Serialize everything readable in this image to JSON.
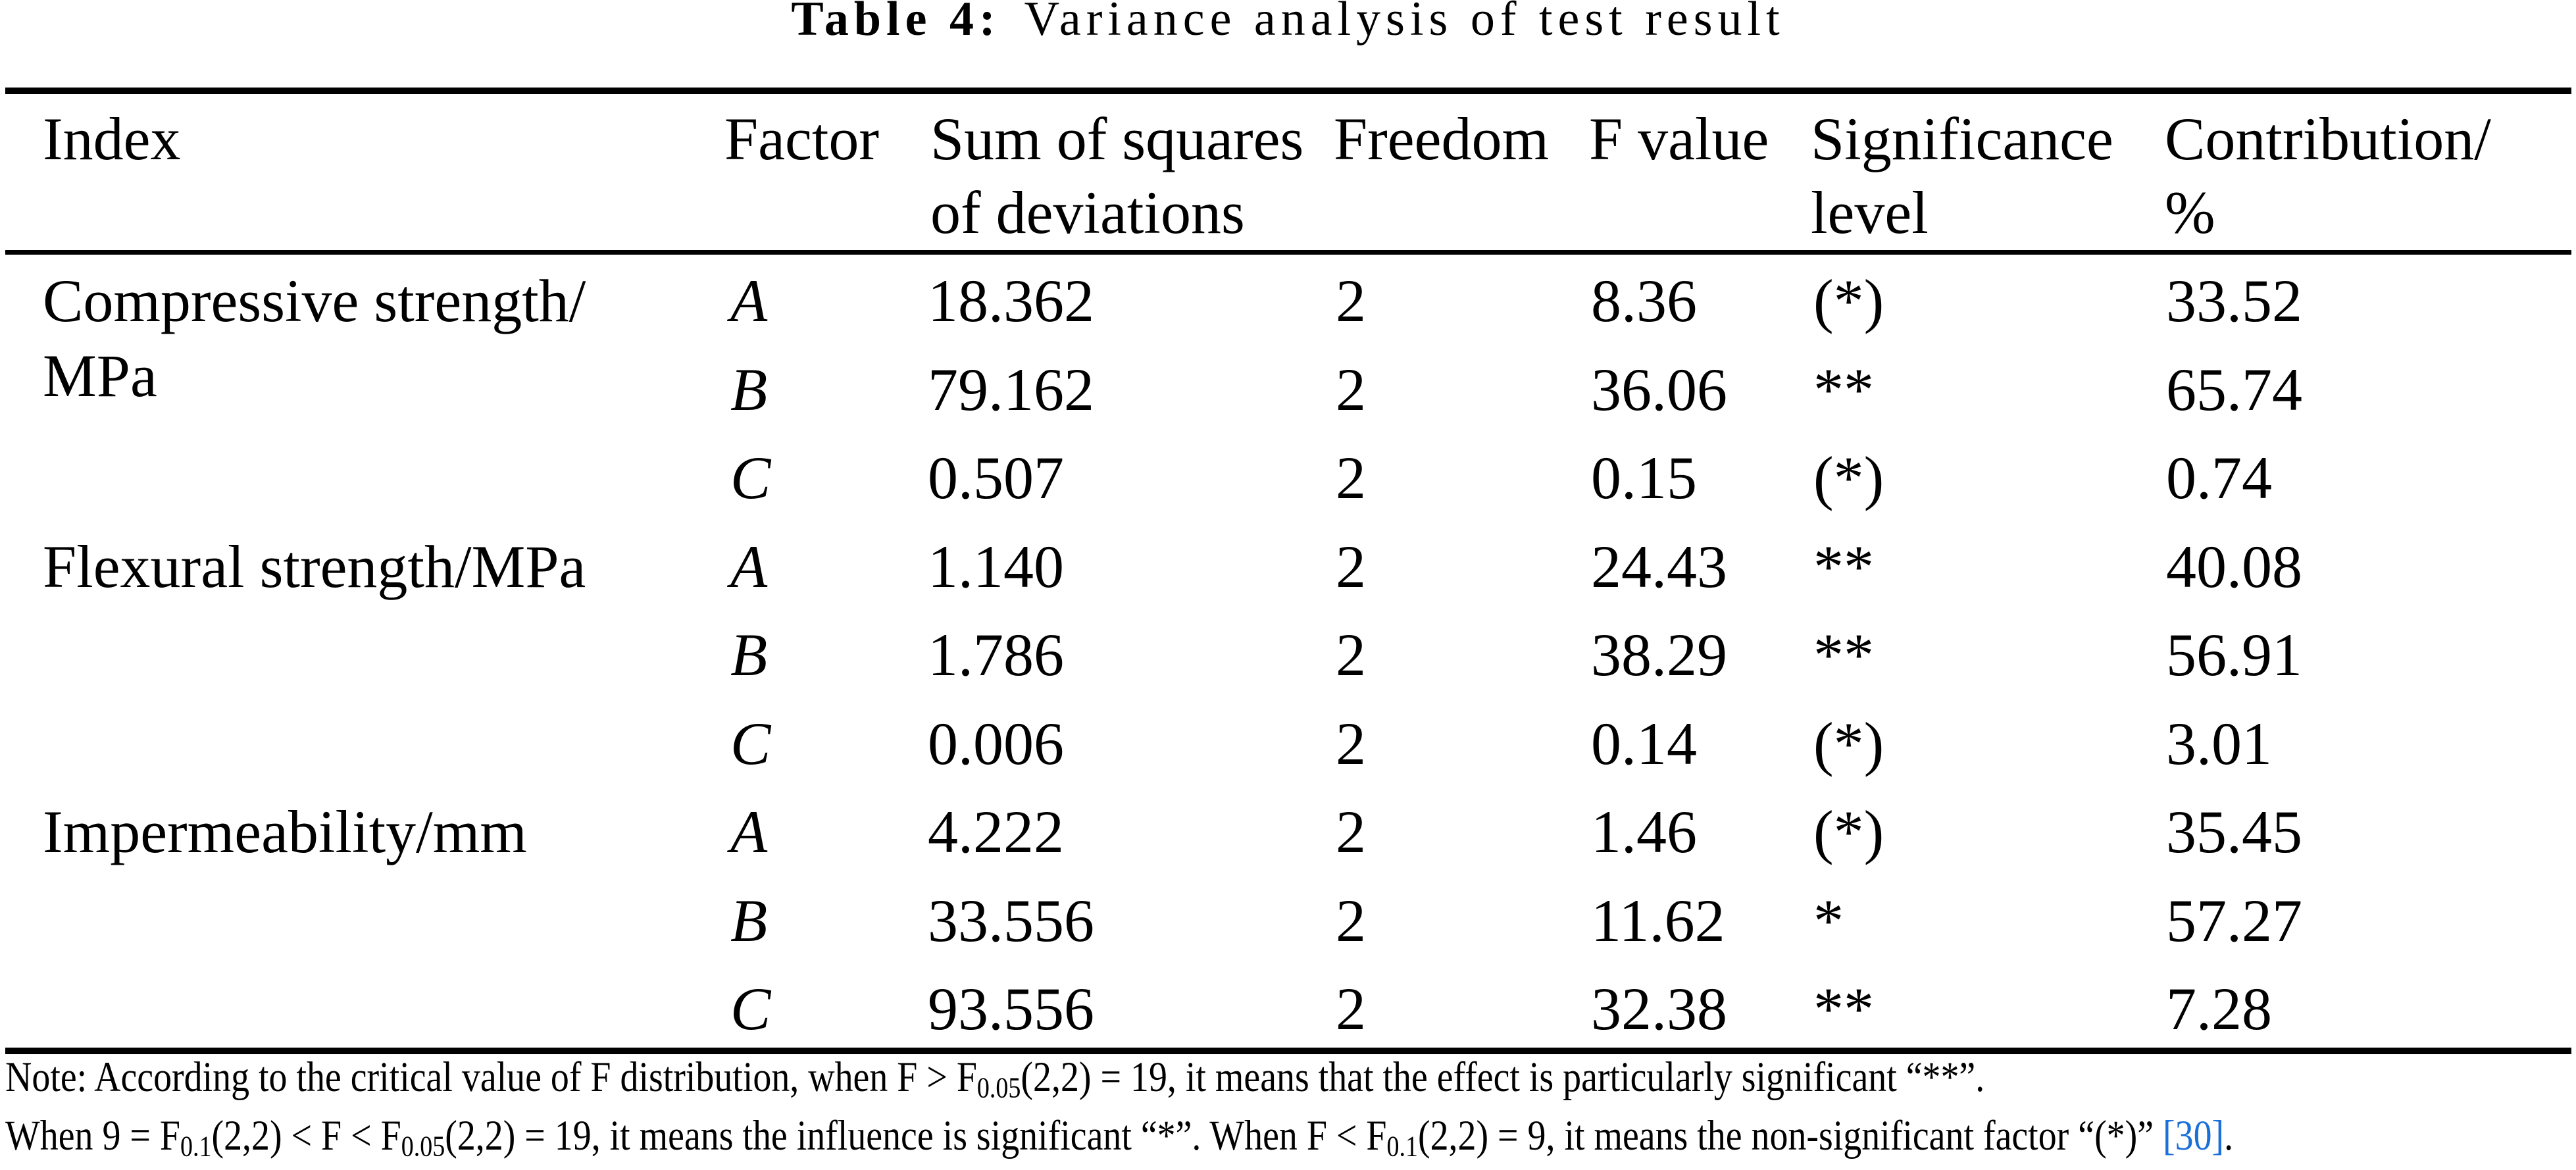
{
  "title": {
    "label": "Table 4:",
    "text": "Variance analysis of test result"
  },
  "colors": {
    "text": "#000000",
    "background": "#ffffff",
    "citation_blue": "#1a6fd8",
    "rule_black": "#000000"
  },
  "header": {
    "columns": [
      {
        "lines": [
          "Index"
        ]
      },
      {
        "lines": [
          "Factor"
        ]
      },
      {
        "lines": [
          "Sum of squares",
          "of deviations"
        ]
      },
      {
        "lines": [
          "Freedom"
        ]
      },
      {
        "lines": [
          "F value"
        ]
      },
      {
        "lines": [
          "Significance",
          "level"
        ]
      },
      {
        "lines": [
          "Contribution/",
          "%"
        ]
      }
    ]
  },
  "rows": [
    {
      "index_lines": [
        "Compressive strength/",
        "MPa"
      ],
      "factor": "A",
      "ss": "18.362",
      "freedom": "2",
      "f": "8.36",
      "sig": "(*)",
      "contrib": "33.52"
    },
    {
      "factor": "B",
      "ss": "79.162",
      "freedom": "2",
      "f": "36.06",
      "sig": "**",
      "contrib": "65.74"
    },
    {
      "factor": "C",
      "ss": "0.507",
      "freedom": "2",
      "f": "0.15",
      "sig": "(*)",
      "contrib": "0.74"
    },
    {
      "index_lines": [
        "Flexural strength/MPa"
      ],
      "factor": "A",
      "ss": "1.140",
      "freedom": "2",
      "f": "24.43",
      "sig": "**",
      "contrib": "40.08"
    },
    {
      "factor": "B",
      "ss": "1.786",
      "freedom": "2",
      "f": "38.29",
      "sig": "**",
      "contrib": "56.91"
    },
    {
      "factor": "C",
      "ss": "0.006",
      "freedom": "2",
      "f": "0.14",
      "sig": "(*)",
      "contrib": "3.01"
    },
    {
      "index_lines": [
        "Impermeability/mm"
      ],
      "factor": "A",
      "ss": "4.222",
      "freedom": "2",
      "f": "1.46",
      "sig": "(*)",
      "contrib": "35.45"
    },
    {
      "factor": "B",
      "ss": "33.556",
      "freedom": "2",
      "f": "11.62",
      "sig": "*",
      "contrib": "57.27"
    },
    {
      "factor": "C",
      "ss": "93.556",
      "freedom": "2",
      "f": "32.38",
      "sig": "**",
      "contrib": "7.28"
    }
  ],
  "note": {
    "line1": [
      {
        "t": "Note: According to the critical value of F distribution, when F > F",
        "style": ""
      },
      {
        "t": "0.05",
        "style": "sub"
      },
      {
        "t": "(2,2) = 19, it means that the effect is particularly significant “**”.",
        "style": ""
      }
    ],
    "line2": [
      {
        "t": "When 9 = F",
        "style": ""
      },
      {
        "t": "0.1",
        "style": "sub"
      },
      {
        "t": "(2,2) < F < F",
        "style": ""
      },
      {
        "t": "0.05",
        "style": "sub"
      },
      {
        "t": "(2,2) = 19, it means the influence is significant “*”. When F < F",
        "style": ""
      },
      {
        "t": "0.1",
        "style": "sub"
      },
      {
        "t": "(2,2) = 9, it means the non-significant factor “(*)” ",
        "style": ""
      },
      {
        "t": "[30]",
        "style": "link"
      },
      {
        "t": ".",
        "style": ""
      }
    ]
  }
}
